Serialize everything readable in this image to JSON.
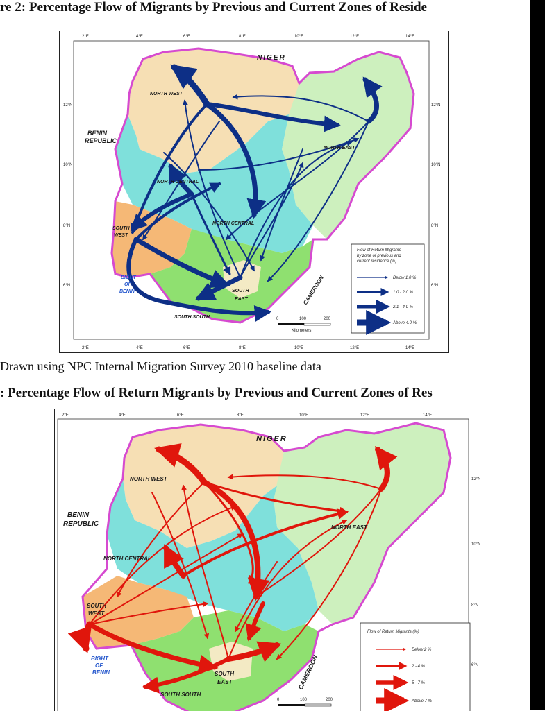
{
  "figure2": {
    "title": "re 2: Percentage Flow of Migrants by Previous and Current Zones of Reside",
    "source": "Drawn using NPC Internal Migration Survey 2010 baseline data",
    "lon_ticks": [
      "2°E",
      "4°E",
      "6°E",
      "8°E",
      "10°E",
      "12°E",
      "14°E"
    ],
    "lat_ticks": [
      "12°N",
      "10°N",
      "8°N",
      "6°N"
    ],
    "labels": {
      "niger": "NIGER",
      "benin": "BENIN",
      "republic": "REPUBLIC",
      "north_west": "NORTH WEST",
      "north_east": "NORTH EAST",
      "north_central_top": "NORTH CENTRAL",
      "north_central_mid": "NORTH CENTRAL",
      "south_west_1": "SOUTH",
      "south_west_2": "WEST",
      "south_east_1": "SOUTH",
      "south_east_2": "EAST",
      "south_south": "SOUTH SOUTH",
      "bight_1": "BIGHT",
      "bight_2": "OF",
      "bight_3": "BENIN",
      "cameroon": "CAMEROON"
    },
    "legend": {
      "title_1": "Flow of Return Migrants",
      "title_2": "by zone of previous and",
      "title_3": "current residence (%)",
      "items": [
        "Below 1.0 %",
        "1.0 - 2.0 %",
        "2.1 - 4.0 %",
        "Above 4.0 %"
      ],
      "scale": [
        "0",
        "100",
        "200"
      ],
      "scale_unit": "Kilometers"
    },
    "arrow_color": "#0d2f86"
  },
  "figure3": {
    "title": ": Percentage Flow of Return Migrants by Previous and Current Zones of Res",
    "lon_ticks": [
      "2°E",
      "4°E",
      "6°E",
      "8°E",
      "10°E",
      "12°E",
      "14°E"
    ],
    "lat_ticks": [
      "12°N",
      "10°N",
      "8°N",
      "6°N"
    ],
    "labels": {
      "niger": "NIGER",
      "benin": "BENIN",
      "republic": "REPUBLIC",
      "north_west": "NORTH WEST",
      "north_east": "NORTH EAST",
      "north_central": "NORTH CENTRAL",
      "south_west_1": "SOUTH",
      "south_west_2": "WEST",
      "south_east_1": "SOUTH",
      "south_east_2": "EAST",
      "south_south": "SOUTH SOUTH",
      "bight_1": "BIGHT",
      "bight_2": "OF",
      "bight_3": "BENIN",
      "cameroon": "CAMEROON"
    },
    "legend": {
      "title_1": "Flow of Return Migrants (%)",
      "items": [
        "Below 2 %",
        "2 - 4 %",
        "5 - 7 %",
        "Above 7 %"
      ],
      "scale": [
        "0",
        "100",
        "200"
      ]
    },
    "arrow_color": "#e0160c"
  },
  "colors": {
    "north_west": "#f6dfb4",
    "north_east": "#cdf0be",
    "north_central": "#7fe0db",
    "south_west": "#f5b876",
    "south_south": "#8fe070",
    "south_east": "#f3eac4",
    "outline": "#d64ad0"
  }
}
